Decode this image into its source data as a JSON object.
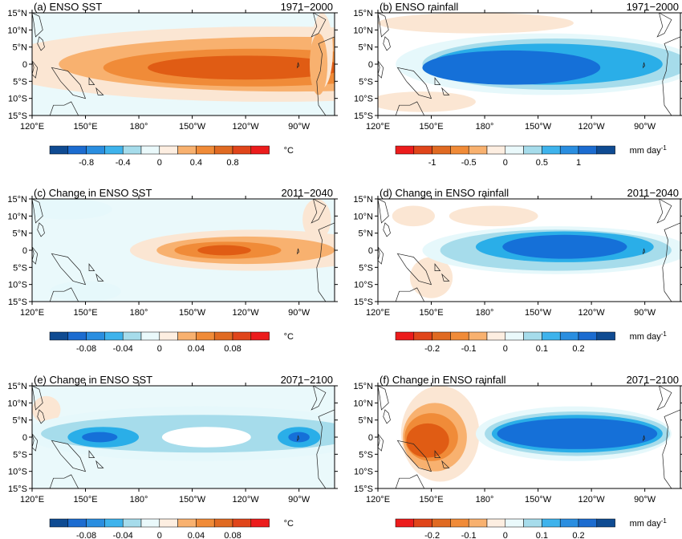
{
  "panels": [
    {
      "id": "a",
      "title": "(a) ENSO SST",
      "period": "1971−2000",
      "kind": "sst",
      "colorbar": {
        "labels": [
          "-0.8",
          "-0.4",
          "0",
          "0.4",
          "0.8"
        ],
        "unit": "°C"
      },
      "blobs": [
        {
          "c": 1,
          "cx": 255,
          "cy": 0,
          "rx": 160,
          "ry": 11
        },
        {
          "c": 1,
          "cx": 262,
          "cy": 0,
          "rx": 145,
          "ry": 10
        },
        {
          "c": 2,
          "cx": 265,
          "cy": 0,
          "rx": 130,
          "ry": 8
        },
        {
          "c": 3,
          "cx": 245,
          "cy": -1,
          "rx": 85,
          "ry": 5.5
        },
        {
          "c": 4,
          "cx": 240,
          "cy": -1,
          "rx": 55,
          "ry": 3.5
        },
        {
          "c": 1,
          "cx": 283,
          "cy": 4,
          "rx": 6,
          "ry": 11
        },
        {
          "c": 2,
          "cx": 281,
          "cy": 0,
          "rx": 5,
          "ry": 9
        }
      ]
    },
    {
      "id": "b",
      "title": "(b) ENSO rainfall",
      "period": "1971−2000",
      "kind": "rain",
      "colorbar": {
        "labels": [
          "-1",
          "-0.5",
          "0",
          "0.5",
          "1"
        ],
        "unit": "mm day",
        "unit_sup": "-1"
      },
      "blobs": [
        {
          "c": -1,
          "cx": 175,
          "cy": 12,
          "rx": 55,
          "ry": 3
        },
        {
          "c": -1,
          "cx": 145,
          "cy": -11,
          "rx": 30,
          "ry": 3
        },
        {
          "c": 1,
          "cx": 215,
          "cy": 0,
          "rx": 85,
          "ry": 9
        },
        {
          "c": 2,
          "cx": 220,
          "cy": 0,
          "rx": 75,
          "ry": 7.5
        },
        {
          "c": 3,
          "cx": 215,
          "cy": 0,
          "rx": 65,
          "ry": 6
        },
        {
          "c": 4,
          "cx": 195,
          "cy": -1,
          "rx": 50,
          "ry": 5
        }
      ]
    },
    {
      "id": "c",
      "title": "(c) Change in ENSO SST",
      "period": "2011−2040",
      "kind": "sst",
      "colorbar": {
        "labels": [
          "-0.08",
          "-0.04",
          "0",
          "0.04",
          "0.08"
        ],
        "unit": "°C"
      },
      "blobs": [
        {
          "c": -1,
          "cx": 140,
          "cy": 12,
          "rx": 25,
          "ry": 3
        },
        {
          "c": -1,
          "cx": 150,
          "cy": -12,
          "rx": 20,
          "ry": 3
        },
        {
          "c": 1,
          "cx": 245,
          "cy": 0,
          "rx": 70,
          "ry": 6
        },
        {
          "c": 2,
          "cx": 240,
          "cy": 0,
          "rx": 50,
          "ry": 4
        },
        {
          "c": 3,
          "cx": 230,
          "cy": 0,
          "rx": 30,
          "ry": 2.5
        },
        {
          "c": 4,
          "cx": 228,
          "cy": 0,
          "rx": 15,
          "ry": 1.5
        },
        {
          "c": 1,
          "cx": 280,
          "cy": 9,
          "rx": 8,
          "ry": 6
        }
      ]
    },
    {
      "id": "d",
      "title": "(d) Change in ENSO rainfall",
      "period": "2011−2040",
      "kind": "rain",
      "colorbar": {
        "labels": [
          "-0.2",
          "-0.1",
          "0",
          "0.1",
          "0.2"
        ],
        "unit": "mm day",
        "unit_sup": "-1"
      },
      "blobs": [
        {
          "c": -1,
          "cx": 140,
          "cy": 10,
          "rx": 12,
          "ry": 3
        },
        {
          "c": -1,
          "cx": 185,
          "cy": 10,
          "rx": 25,
          "ry": 3
        },
        {
          "c": -1,
          "cx": 150,
          "cy": -8,
          "rx": 12,
          "ry": 6
        },
        {
          "c": 1,
          "cx": 220,
          "cy": 0,
          "rx": 75,
          "ry": 7
        },
        {
          "c": 2,
          "cx": 220,
          "cy": 0,
          "rx": 65,
          "ry": 6
        },
        {
          "c": 3,
          "cx": 225,
          "cy": 1,
          "rx": 50,
          "ry": 4.5
        },
        {
          "c": 4,
          "cx": 225,
          "cy": 1,
          "rx": 35,
          "ry": 3.5
        }
      ]
    },
    {
      "id": "e",
      "title": "(e) Change in ENSO SST",
      "period": "2071−2100",
      "kind": "sst",
      "colorbar": {
        "labels": [
          "-0.08",
          "-0.04",
          "0",
          "0.04",
          "0.08"
        ],
        "unit": "°C"
      },
      "blobs": [
        {
          "c": 1,
          "cx": 128,
          "cy": 8,
          "rx": 8,
          "ry": 4
        },
        {
          "c": -1,
          "cx": 215,
          "cy": 1,
          "rx": 100,
          "ry": 8
        },
        {
          "c": -2,
          "cx": 215,
          "cy": 1,
          "rx": 90,
          "ry": 5.5
        },
        {
          "c": -3,
          "cx": 160,
          "cy": 0,
          "rx": 20,
          "ry": 3
        },
        {
          "c": -4,
          "cx": 158,
          "cy": 0,
          "rx": 10,
          "ry": 1.5
        },
        {
          "c": 0,
          "cx": 218,
          "cy": 0,
          "rx": 25,
          "ry": 3
        },
        {
          "c": -3,
          "cx": 270,
          "cy": 0,
          "rx": 12,
          "ry": 3
        },
        {
          "c": -4,
          "cx": 270,
          "cy": 0,
          "rx": 6,
          "ry": 1.5
        }
      ]
    },
    {
      "id": "f",
      "title": "(f) Change in ENSO rainfall",
      "period": "2071−2100",
      "kind": "rain",
      "colorbar": {
        "labels": [
          "-0.2",
          "-0.1",
          "0",
          "0.1",
          "0.2"
        ],
        "unit": "mm day",
        "unit_sup": "-1"
      },
      "blobs": [
        {
          "c": -1,
          "cx": 155,
          "cy": 1,
          "rx": 22,
          "ry": 14
        },
        {
          "c": -2,
          "cx": 152,
          "cy": 0,
          "rx": 18,
          "ry": 10
        },
        {
          "c": -3,
          "cx": 150,
          "cy": 0,
          "rx": 15,
          "ry": 7
        },
        {
          "c": -4,
          "cx": 148,
          "cy": -1,
          "rx": 12,
          "ry": 5
        },
        {
          "c": 1,
          "cx": 230,
          "cy": 1,
          "rx": 55,
          "ry": 8
        },
        {
          "c": 2,
          "cx": 232,
          "cy": 1,
          "rx": 52,
          "ry": 6.5
        },
        {
          "c": 3,
          "cx": 232,
          "cy": 1,
          "rx": 48,
          "ry": 5.5
        },
        {
          "c": 4,
          "cx": 232,
          "cy": 1,
          "rx": 45,
          "ry": 4.5
        }
      ]
    }
  ],
  "lat_labels": [
    "15°N",
    "10°N",
    "5°N",
    "0",
    "5°S",
    "10°S",
    "15°S"
  ],
  "lon_labels": [
    "120°E",
    "150°E",
    "180°",
    "150°W",
    "120°W",
    "90°W"
  ],
  "lon_range": [
    120,
    290
  ],
  "lat_range": [
    -15,
    15
  ],
  "palettes": {
    "warm": [
      "#fbe6d3",
      "#f8b16f",
      "#f08b38",
      "#e05c14",
      "#ec2d12"
    ],
    "cool": [
      "#e6f8fb",
      "#a6dceb",
      "#2aaee8",
      "#1570d8",
      "#0f4b92"
    ],
    "sst_bar": [
      "#0f4b92",
      "#1c6cd0",
      "#2a8ee0",
      "#3eb3ec",
      "#a6dceb",
      "#eaf9fb",
      "#fdeee1",
      "#f8b16f",
      "#f08b38",
      "#e06a22",
      "#e0451a",
      "#ec1c1c"
    ],
    "rain_bar": [
      "#ec1c1c",
      "#e0451a",
      "#e06a22",
      "#f08b38",
      "#f8b16f",
      "#fdeee1",
      "#eaf9fb",
      "#a6dceb",
      "#3eb3ec",
      "#2a8ee0",
      "#1c6cd0",
      "#0f4b92"
    ]
  }
}
